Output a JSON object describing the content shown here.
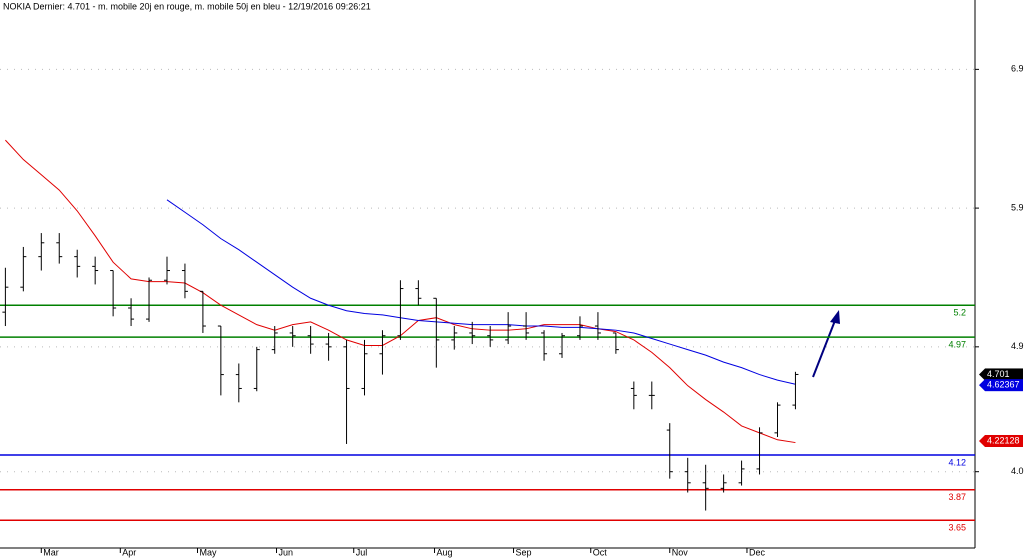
{
  "chart_data": {
    "type": "ohlc",
    "title": "NOKIA Dernier: 4.701 - m. mobile 20j en rouge, m. mobile 50j en bleu - 12/19/2016 09:26:21",
    "x": [
      0,
      1,
      2,
      3,
      4,
      5,
      6,
      7,
      8,
      9,
      10,
      11,
      12,
      13,
      14,
      15,
      16,
      17,
      18,
      19,
      20,
      21,
      22,
      23,
      24,
      25,
      26,
      27,
      28,
      29,
      30,
      31,
      32,
      33,
      34,
      35,
      36,
      37,
      38,
      39,
      40,
      41,
      42,
      43,
      44
    ],
    "open": [
      5.15,
      5.33,
      5.55,
      5.65,
      5.55,
      5.48,
      5.45,
      5.18,
      5.1,
      5.38,
      5.45,
      5.3,
      5.05,
      4.7,
      4.6,
      4.88,
      5.0,
      4.98,
      4.92,
      4.9,
      4.6,
      4.85,
      4.98,
      5.32,
      5.25,
      4.95,
      5.0,
      4.98,
      4.95,
      5.05,
      5.0,
      4.85,
      4.98,
      5.05,
      5.0,
      4.6,
      4.55,
      4.3,
      4.0,
      3.92,
      3.88,
      3.92,
      4.02,
      4.28,
      4.48
    ],
    "high": [
      5.47,
      5.62,
      5.72,
      5.72,
      5.6,
      5.55,
      5.45,
      5.25,
      5.4,
      5.55,
      5.5,
      5.3,
      5.05,
      4.78,
      4.9,
      5.05,
      5.05,
      5.05,
      5.0,
      4.95,
      4.95,
      5.02,
      5.38,
      5.38,
      5.25,
      5.05,
      5.08,
      5.05,
      5.15,
      5.15,
      5.02,
      5.0,
      5.12,
      5.15,
      5.0,
      4.65,
      4.65,
      4.35,
      4.1,
      4.05,
      3.98,
      4.08,
      4.32,
      4.5,
      4.72
    ],
    "low": [
      5.05,
      5.3,
      5.45,
      5.5,
      5.4,
      5.35,
      5.12,
      5.05,
      5.08,
      5.35,
      5.25,
      5.0,
      4.55,
      4.5,
      4.58,
      4.85,
      4.9,
      4.85,
      4.8,
      4.2,
      4.55,
      4.7,
      4.95,
      5.2,
      4.75,
      4.88,
      4.92,
      4.9,
      4.92,
      4.95,
      4.8,
      4.82,
      4.95,
      4.95,
      4.85,
      4.45,
      4.45,
      3.95,
      3.85,
      3.72,
      3.85,
      3.9,
      3.98,
      4.25,
      4.45
    ],
    "close": [
      5.33,
      5.55,
      5.65,
      5.55,
      5.48,
      5.45,
      5.18,
      5.1,
      5.38,
      5.45,
      5.3,
      5.05,
      4.7,
      4.6,
      4.88,
      5.0,
      4.98,
      4.92,
      4.9,
      4.6,
      4.85,
      4.98,
      5.32,
      5.25,
      4.95,
      5.0,
      4.98,
      4.95,
      5.05,
      5.0,
      4.85,
      4.98,
      5.05,
      5.0,
      4.88,
      4.55,
      4.55,
      4.0,
      3.92,
      3.88,
      3.92,
      4.02,
      4.28,
      4.48,
      4.701
    ],
    "bar_color": "#000000",
    "moving_averages": [
      {
        "color": "#e00000",
        "values": [
          6.39,
          6.25,
          6.14,
          6.03,
          5.88,
          5.7,
          5.51,
          5.39,
          5.37,
          5.37,
          5.36,
          5.29,
          5.2,
          5.13,
          5.06,
          5.02,
          5.06,
          5.08,
          5.02,
          4.95,
          4.91,
          4.91,
          4.98,
          5.09,
          5.11,
          5.06,
          5.03,
          5.02,
          5.02,
          5.03,
          5.06,
          5.06,
          5.06,
          5.03,
          5.01,
          4.95,
          4.86,
          4.75,
          4.62,
          4.52,
          4.43,
          4.33,
          4.28,
          4.23,
          4.21
        ]
      },
      {
        "color": "#0000e0",
        "values": [
          null,
          null,
          null,
          null,
          null,
          null,
          null,
          null,
          null,
          5.96,
          5.87,
          5.78,
          5.68,
          5.6,
          5.51,
          5.42,
          5.33,
          5.25,
          5.2,
          5.16,
          5.14,
          5.13,
          5.11,
          5.09,
          5.08,
          5.07,
          5.06,
          5.06,
          5.06,
          5.05,
          5.05,
          5.04,
          5.04,
          5.03,
          5.02,
          5.0,
          4.96,
          4.92,
          4.88,
          4.84,
          4.79,
          4.75,
          4.7,
          4.66,
          4.63
        ]
      }
    ],
    "levels": [
      {
        "value": 5.2,
        "color": "#008000"
      },
      {
        "value": 4.97,
        "color": "#008000"
      },
      {
        "value": 4.12,
        "color": "#0000e0"
      },
      {
        "value": 3.87,
        "color": "#e00000"
      },
      {
        "value": 3.65,
        "color": "#e00000"
      }
    ],
    "markers": [
      {
        "value": 4.701,
        "color": "#000000"
      },
      {
        "value": 4.62367,
        "color": "#0000e0"
      },
      {
        "value": 4.22128,
        "color": "#e00000"
      }
    ],
    "xlim": [
      -0.3,
      54
    ],
    "xticks": [
      {
        "value": 2,
        "label": "Mar"
      },
      {
        "value": 6.4,
        "label": "Apr"
      },
      {
        "value": 10.7,
        "label": "May"
      },
      {
        "value": 15.1,
        "label": "Jun"
      },
      {
        "value": 19.4,
        "label": "Jul"
      },
      {
        "value": 23.9,
        "label": "Aug"
      },
      {
        "value": 28.3,
        "label": "Sep"
      },
      {
        "value": 32.6,
        "label": "Oct"
      },
      {
        "value": 37,
        "label": "Nov"
      },
      {
        "value": 41.3,
        "label": "Dec"
      }
    ],
    "ylim": [
      3.45,
      7.4
    ],
    "yticks": [
      {
        "value": 4,
        "label": "4.0"
      },
      4.9,
      5.9,
      6.9
    ],
    "grid": true
  }
}
